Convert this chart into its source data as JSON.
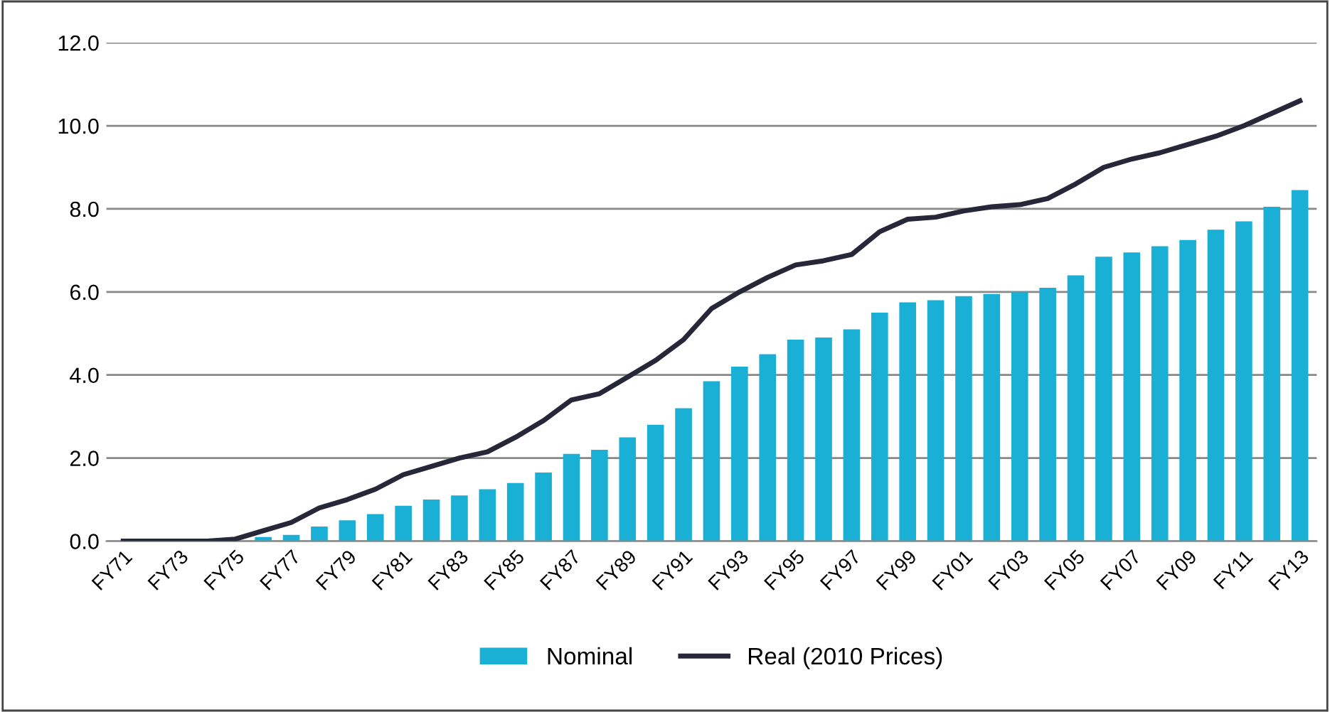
{
  "chart_data": {
    "type": "bar",
    "categories": [
      "FY71",
      null,
      "FY73",
      null,
      "FY75",
      null,
      "FY77",
      null,
      "FY79",
      null,
      "FY81",
      null,
      "FY83",
      null,
      "FY85",
      null,
      "FY87",
      null,
      "FY89",
      null,
      "FY91",
      null,
      "FY93",
      null,
      "FY95",
      null,
      "FY97",
      null,
      "FY99",
      null,
      "FY01",
      null,
      "FY03",
      null,
      "FY05",
      null,
      "FY07",
      null,
      "FY09",
      null,
      "FY11",
      null,
      "FY13"
    ],
    "series": [
      {
        "name": "Nominal",
        "color": "#1aafd4",
        "values": [
          0,
          0,
          0,
          0,
          null,
          0.1,
          0.15,
          0.35,
          0.5,
          0.65,
          0.85,
          1.0,
          1.1,
          1.25,
          1.4,
          1.65,
          2.1,
          2.2,
          2.5,
          2.8,
          3.2,
          3.85,
          4.2,
          4.5,
          4.85,
          4.9,
          5.1,
          5.5,
          5.75,
          5.8,
          5.9,
          5.95,
          6.0,
          6.1,
          6.4,
          6.85,
          6.95,
          7.1,
          7.25,
          7.5,
          7.7,
          8.05,
          8.45
        ]
      },
      {
        "name": "Real (2010 Prices)",
        "type": "line",
        "color": "#262738",
        "values": [
          0,
          0,
          0,
          0,
          0.05,
          0.25,
          0.45,
          0.8,
          1.0,
          1.25,
          1.6,
          1.8,
          2.0,
          2.15,
          2.5,
          2.9,
          3.4,
          3.55,
          3.95,
          4.35,
          4.85,
          5.6,
          6.0,
          6.35,
          6.65,
          6.75,
          6.9,
          7.45,
          7.75,
          7.8,
          7.95,
          8.05,
          8.1,
          8.25,
          8.6,
          9.0,
          9.2,
          9.35,
          9.55,
          9.75,
          10.0,
          10.3,
          10.6
        ]
      }
    ],
    "ylim": [
      0,
      12
    ],
    "yticks": [
      {
        "value": 0,
        "label": "0.0"
      },
      {
        "value": 2,
        "label": "2.0"
      },
      {
        "value": 4,
        "label": "4.0"
      },
      {
        "value": 6,
        "label": "6.0"
      },
      {
        "value": 8,
        "label": "8.0"
      },
      {
        "value": 10,
        "label": "10.0"
      },
      {
        "value": 12,
        "label": "12.0"
      }
    ],
    "grid": "y",
    "legend": "bottom",
    "marker": "none",
    "line_style": "solid"
  }
}
